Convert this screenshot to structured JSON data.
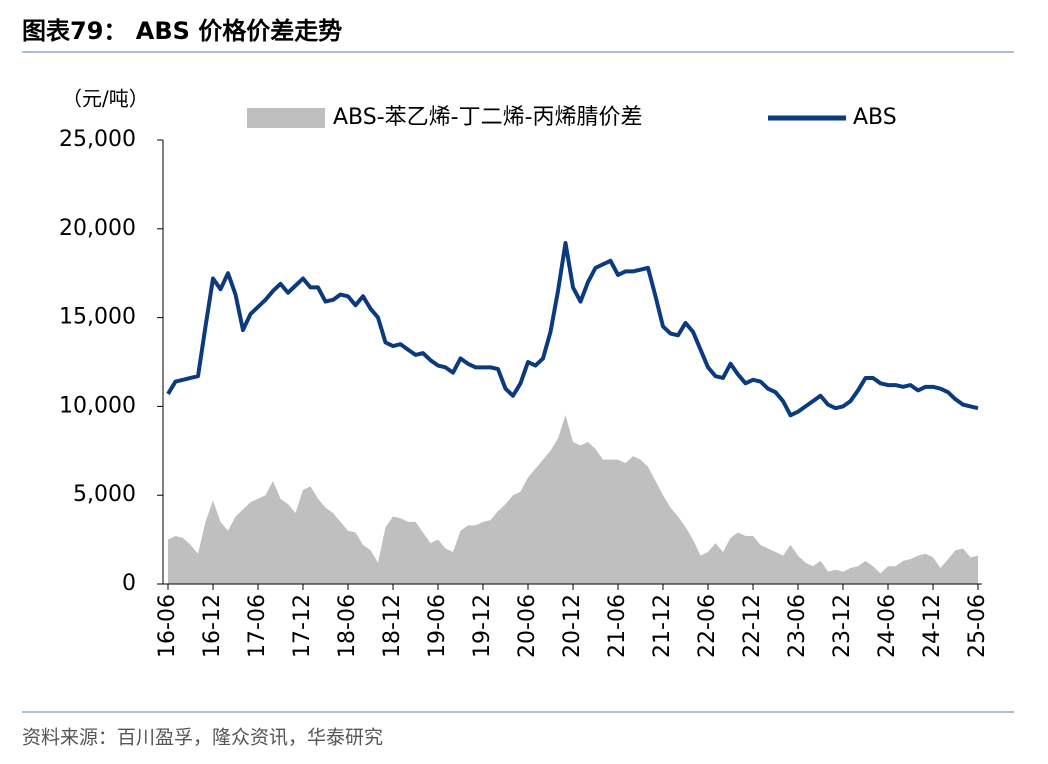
{
  "chart_data": {
    "type": "line",
    "title": "图表79：  ABS 价格价差走势",
    "y_label": "（元/吨）",
    "source": "资料来源：百川盈孚，隆众资讯，华泰研究",
    "ylim": [
      0,
      25000
    ],
    "yticks": [
      0,
      {
        "value": 5000,
        "label": "5,000"
      },
      {
        "value": 10000,
        "label": "10,000"
      },
      {
        "value": 15000,
        "label": "15,000"
      },
      {
        "value": 20000,
        "label": "20,000"
      },
      {
        "value": 25000,
        "label": "25,000"
      }
    ],
    "grid": false,
    "categories": [
      "16-06",
      null,
      null,
      null,
      null,
      null,
      "16-12",
      null,
      null,
      null,
      null,
      null,
      "17-06",
      null,
      null,
      null,
      null,
      null,
      "17-12",
      null,
      null,
      null,
      null,
      null,
      "18-06",
      null,
      null,
      null,
      null,
      null,
      "18-12",
      null,
      null,
      null,
      null,
      null,
      "19-06",
      null,
      null,
      null,
      null,
      null,
      "19-12",
      null,
      null,
      null,
      null,
      null,
      "20-06",
      null,
      null,
      null,
      null,
      null,
      "20-12",
      null,
      null,
      null,
      null,
      null,
      "21-06",
      null,
      null,
      null,
      null,
      null,
      "21-12",
      null,
      null,
      null,
      null,
      null,
      "22-06",
      null,
      null,
      null,
      null,
      null,
      "22-12",
      null,
      null,
      null,
      null,
      null,
      "23-06",
      null,
      null,
      null,
      null,
      null,
      "23-12",
      null,
      null,
      null,
      null,
      null,
      "24-06",
      null,
      null,
      null,
      null,
      null,
      "24-12",
      null,
      null,
      null,
      null,
      null,
      "25-06"
    ],
    "series": [
      {
        "name": "ABS-苯乙烯-丁二烯-丙烯腈价差",
        "type": "area",
        "color": "#bfbfbf",
        "values": [
          2500,
          2700,
          2600,
          2200,
          1700,
          3500,
          4700,
          3500,
          3000,
          3800,
          4200,
          4600,
          4800,
          5000,
          5800,
          4800,
          4500,
          4000,
          5300,
          5500,
          4800,
          4300,
          4000,
          3500,
          3000,
          2900,
          2200,
          1900,
          1200,
          3200,
          3800,
          3700,
          3500,
          3500,
          2900,
          2300,
          2500,
          2000,
          1800,
          3000,
          3300,
          3300,
          3500,
          3600,
          4100,
          4500,
          5000,
          5200,
          6000,
          6500,
          7000,
          7500,
          8200,
          9500,
          8000,
          7800,
          8000,
          7600,
          7000,
          7000,
          7000,
          6800,
          7200,
          7000,
          6600,
          5800,
          5000,
          4300,
          3800,
          3200,
          2500,
          1600,
          1800,
          2300,
          1800,
          2600,
          2900,
          2700,
          2700,
          2200,
          2000,
          1800,
          1600,
          2200,
          1600,
          1200,
          1000,
          1300,
          700,
          800,
          700,
          900,
          1000,
          1300,
          1000,
          600,
          1000,
          1000,
          1300,
          1400,
          1600,
          1700,
          1500,
          900,
          1400,
          1900,
          2000,
          1500,
          1600
        ]
      },
      {
        "name": "ABS",
        "type": "line",
        "color": "#0b3a7e",
        "values": [
          10700,
          11400,
          11500,
          11600,
          11700,
          14500,
          17200,
          16600,
          17500,
          16300,
          14300,
          15200,
          15600,
          16000,
          16500,
          16900,
          16400,
          16800,
          17200,
          16700,
          16700,
          15900,
          16000,
          16300,
          16200,
          15700,
          16200,
          15500,
          15000,
          13600,
          13400,
          13500,
          13200,
          12900,
          13000,
          12600,
          12300,
          12200,
          11900,
          12700,
          12400,
          12200,
          12200,
          12200,
          12100,
          11000,
          10600,
          11300,
          12500,
          12300,
          12700,
          14200,
          16500,
          19200,
          16700,
          15900,
          17000,
          17800,
          18000,
          18200,
          17400,
          17600,
          17600,
          17700,
          17800,
          16200,
          14500,
          14100,
          14000,
          14700,
          14200,
          13200,
          12200,
          11700,
          11600,
          12400,
          11800,
          11300,
          11500,
          11400,
          11000,
          10800,
          10300,
          9500,
          9700,
          10000,
          10300,
          10600,
          10100,
          9900,
          10000,
          10300,
          10900,
          11600,
          11600,
          11300,
          11200,
          11200,
          11100,
          11200,
          10900,
          11100,
          11100,
          11000,
          10800,
          10400,
          10100,
          10000,
          9900
        ]
      }
    ]
  }
}
